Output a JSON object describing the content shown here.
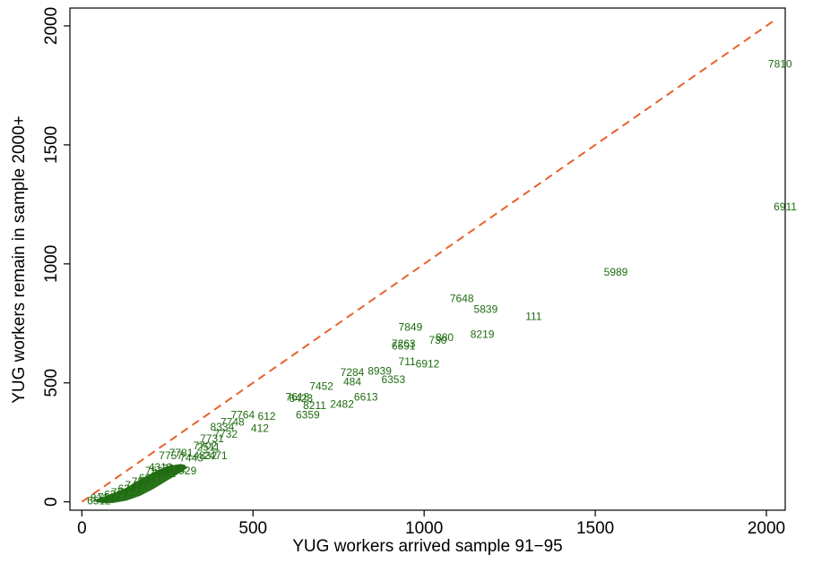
{
  "chart_data": {
    "type": "scatter",
    "title": "",
    "xlabel": "YUG workers arrived sample 91−95",
    "ylabel": "YUG workers remain in sample 2000+",
    "xlim": [
      -35,
      2055
    ],
    "ylim": [
      -35,
      2075
    ],
    "xticks": [
      0,
      500,
      1000,
      1500,
      2000
    ],
    "yticks": [
      0,
      500,
      1000,
      1500,
      2000
    ],
    "xtick_labels": [
      "0",
      "500",
      "1000",
      "1500",
      "2000"
    ],
    "ytick_labels": [
      "0",
      "500",
      "1000",
      "1500",
      "2000"
    ],
    "grid": false,
    "legend": "none",
    "reference_line": {
      "name": "45-degree line",
      "x": [
        0,
        2025
      ],
      "y": [
        0,
        2025
      ],
      "style": "dashed",
      "color": "#E8612C"
    },
    "marker_label_color": "#1E6B0F",
    "points": [
      {
        "x": 2040,
        "y": 1840,
        "label": "7810"
      },
      {
        "x": 2055,
        "y": 1240,
        "label": "6911"
      },
      {
        "x": 1560,
        "y": 965,
        "label": "5989"
      },
      {
        "x": 1110,
        "y": 855,
        "label": "7648"
      },
      {
        "x": 1180,
        "y": 810,
        "label": "5839"
      },
      {
        "x": 1320,
        "y": 780,
        "label": "111"
      },
      {
        "x": 960,
        "y": 735,
        "label": "7849"
      },
      {
        "x": 1170,
        "y": 705,
        "label": "8219"
      },
      {
        "x": 1060,
        "y": 690,
        "label": "880"
      },
      {
        "x": 1040,
        "y": 680,
        "label": "730"
      },
      {
        "x": 940,
        "y": 665,
        "label": "7263"
      },
      {
        "x": 940,
        "y": 655,
        "label": "6591"
      },
      {
        "x": 950,
        "y": 590,
        "label": "711"
      },
      {
        "x": 1010,
        "y": 580,
        "label": "6912"
      },
      {
        "x": 790,
        "y": 545,
        "label": "7284"
      },
      {
        "x": 870,
        "y": 550,
        "label": "8939"
      },
      {
        "x": 910,
        "y": 515,
        "label": "6353"
      },
      {
        "x": 790,
        "y": 505,
        "label": "484"
      },
      {
        "x": 700,
        "y": 485,
        "label": "7452"
      },
      {
        "x": 830,
        "y": 440,
        "label": "6613"
      },
      {
        "x": 630,
        "y": 440,
        "label": "7618"
      },
      {
        "x": 640,
        "y": 435,
        "label": "6423"
      },
      {
        "x": 760,
        "y": 410,
        "label": "2482"
      },
      {
        "x": 680,
        "y": 405,
        "label": "8211"
      },
      {
        "x": 660,
        "y": 365,
        "label": "6359"
      },
      {
        "x": 470,
        "y": 365,
        "label": "7764"
      },
      {
        "x": 540,
        "y": 360,
        "label": "612"
      },
      {
        "x": 440,
        "y": 335,
        "label": "7748"
      },
      {
        "x": 520,
        "y": 310,
        "label": "412"
      },
      {
        "x": 410,
        "y": 315,
        "label": "8334"
      },
      {
        "x": 420,
        "y": 285,
        "label": "7732"
      },
      {
        "x": 380,
        "y": 265,
        "label": "7731"
      },
      {
        "x": 360,
        "y": 235,
        "label": "7702"
      },
      {
        "x": 370,
        "y": 230,
        "label": "2511"
      },
      {
        "x": 290,
        "y": 205,
        "label": "7781"
      },
      {
        "x": 360,
        "y": 195,
        "label": "4832"
      },
      {
        "x": 390,
        "y": 195,
        "label": "2471"
      },
      {
        "x": 260,
        "y": 195,
        "label": "7757"
      },
      {
        "x": 320,
        "y": 185,
        "label": "7443"
      },
      {
        "x": 300,
        "y": 130,
        "label": "7929"
      },
      {
        "x": 270,
        "y": 140,
        "label": "7282"
      },
      {
        "x": 230,
        "y": 145,
        "label": "4313"
      },
      {
        "x": 220,
        "y": 130,
        "label": "7522"
      },
      {
        "x": 240,
        "y": 120,
        "label": "6242"
      },
      {
        "x": 200,
        "y": 100,
        "label": "6211"
      },
      {
        "x": 180,
        "y": 85,
        "label": "7332"
      },
      {
        "x": 160,
        "y": 70,
        "label": "7411"
      },
      {
        "x": 140,
        "y": 55,
        "label": "6341"
      },
      {
        "x": 120,
        "y": 40,
        "label": "7741"
      },
      {
        "x": 100,
        "y": 30,
        "label": "6322"
      },
      {
        "x": 80,
        "y": 20,
        "label": "7112"
      },
      {
        "x": 60,
        "y": 15,
        "label": "8123"
      },
      {
        "x": 50,
        "y": 5,
        "label": "6512"
      }
    ]
  }
}
